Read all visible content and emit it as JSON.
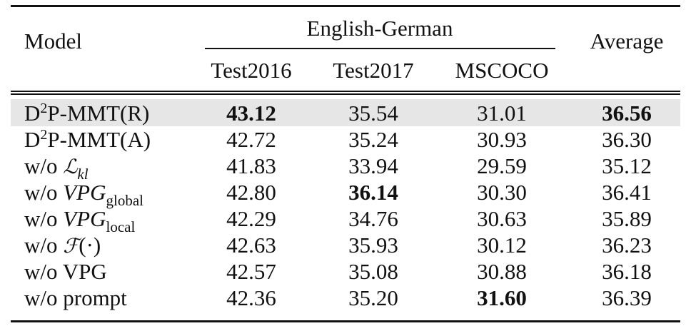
{
  "header": {
    "model": "Model",
    "group": "English-German",
    "average": "Average",
    "cols": [
      "Test2016",
      "Test2017",
      "MSCOCO"
    ]
  },
  "rows": [
    {
      "prefix": "",
      "base": "D",
      "sup": "2",
      "rest": "P-MMT(R)",
      "values": [
        "43.12",
        "35.54",
        "31.01",
        "36.56"
      ],
      "bold": [
        true,
        false,
        false,
        true
      ],
      "highlight": true
    },
    {
      "prefix": "",
      "base": "D",
      "sup": "2",
      "rest": "P-MMT(A)",
      "values": [
        "42.72",
        "35.24",
        "30.93",
        "36.30"
      ],
      "bold": [
        false,
        false,
        false,
        false
      ],
      "highlight": false
    },
    {
      "prefix": "w/o",
      "sym": "ℒ",
      "symsub": "kl",
      "values": [
        "41.83",
        "33.94",
        "29.59",
        "35.12"
      ],
      "bold": [
        false,
        false,
        false,
        false
      ],
      "highlight": false
    },
    {
      "prefix": "w/o",
      "sym": "VPG",
      "symsub": "global",
      "values": [
        "42.80",
        "36.14",
        "30.30",
        "36.41"
      ],
      "bold": [
        false,
        true,
        false,
        false
      ],
      "highlight": false
    },
    {
      "prefix": "w/o",
      "sym": "VPG",
      "symsub": "local",
      "values": [
        "42.29",
        "34.76",
        "30.63",
        "35.89"
      ],
      "bold": [
        false,
        false,
        false,
        false
      ],
      "highlight": false
    },
    {
      "prefix": "w/o",
      "sym": "ℱ",
      "symarg": "(·)",
      "values": [
        "42.63",
        "35.93",
        "30.12",
        "36.23"
      ],
      "bold": [
        false,
        false,
        false,
        false
      ],
      "highlight": false
    },
    {
      "prefix": "w/o",
      "label": "VPG",
      "values": [
        "42.57",
        "35.08",
        "30.88",
        "36.18"
      ],
      "bold": [
        false,
        false,
        false,
        false
      ],
      "highlight": false
    },
    {
      "prefix": "w/o",
      "label": "prompt",
      "values": [
        "42.36",
        "35.20",
        "31.60",
        "36.39"
      ],
      "bold": [
        false,
        false,
        true,
        false
      ],
      "highlight": false
    }
  ]
}
